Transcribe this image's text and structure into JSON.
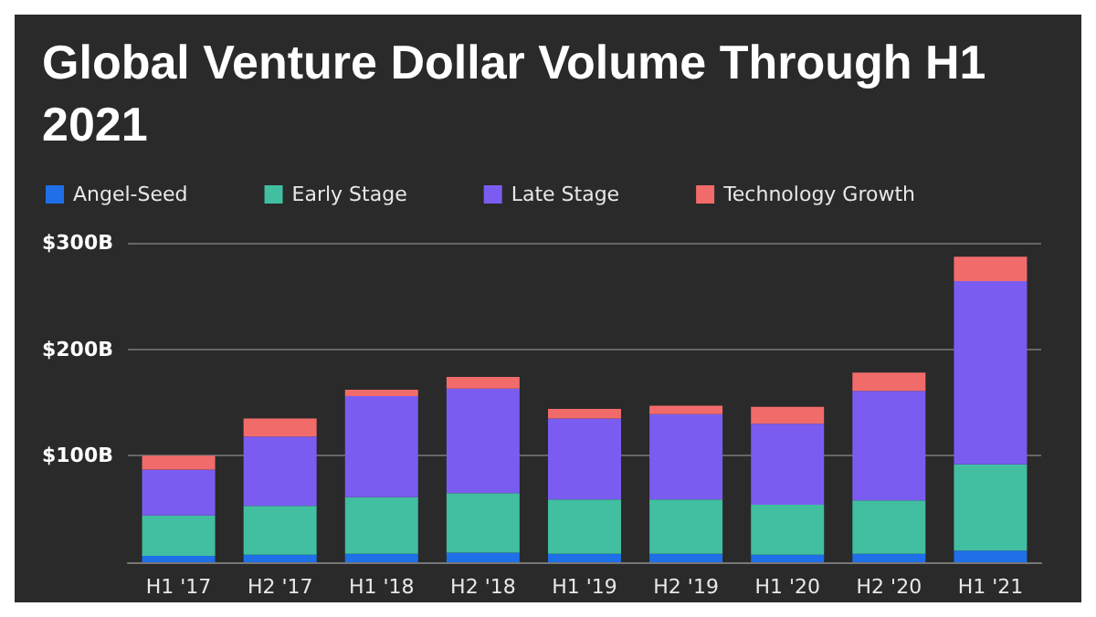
{
  "chart_data": {
    "type": "bar",
    "title": "Global Venture Dollar Volume Through H1 2021",
    "stacked": true,
    "legend": "top left",
    "grid": "y",
    "categories": [
      "H1 '17",
      "H2 '17",
      "H1 '18",
      "H2 '18",
      "H1 '19",
      "H2 '19",
      "H1 '20",
      "H2 '20",
      "H1 '21"
    ],
    "ylim": [
      0,
      300
    ],
    "yticks": [
      {
        "value": 0,
        "label": null
      },
      {
        "value": 100,
        "label": "$100B"
      },
      {
        "value": 200,
        "label": "$200B"
      },
      {
        "value": 300,
        "label": "$300B"
      }
    ],
    "series": [
      {
        "name": "Angel-Seed",
        "color": "#1f6fe8",
        "values": [
          6,
          7,
          8,
          9,
          8,
          8,
          7,
          8,
          11
        ]
      },
      {
        "name": "Early Stage",
        "color": "#41bfa0",
        "values": [
          38,
          46,
          53,
          56,
          51,
          51,
          47,
          50,
          81
        ]
      },
      {
        "name": "Late Stage",
        "color": "#7b5cf0",
        "values": [
          43,
          65,
          95,
          98,
          76,
          80,
          76,
          103,
          172
        ]
      },
      {
        "name": "Technology Growth",
        "color": "#f26b6b",
        "values": [
          13,
          17,
          6,
          11,
          9,
          8,
          16,
          17,
          23
        ]
      }
    ]
  }
}
